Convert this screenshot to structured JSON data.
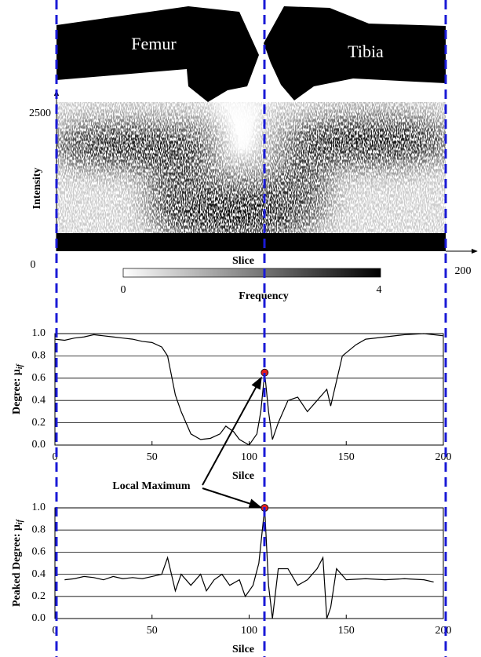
{
  "anatomy": {
    "femur": "Femur",
    "tibia": "Tibia"
  },
  "intensity_map": {
    "ylabel": "Intensity",
    "xlabel": "Slice",
    "ytop_label": "2500",
    "origin_label": "0",
    "xend_label": "200",
    "colorbar": {
      "label": "Frequency",
      "min_label": "0",
      "max_label": "4"
    }
  },
  "annotation": "Local Maximum",
  "chart_data": [
    {
      "type": "line",
      "xlabel": "Silce",
      "ylabel": "Degree:  μ",
      "ylabel_sub": "if",
      "xlim": [
        0,
        200
      ],
      "xticks": [
        0,
        50,
        100,
        150,
        200
      ],
      "ylim": [
        0,
        1
      ],
      "yticks": [
        {
          "value": 0,
          "label": "0.0"
        },
        0.2,
        0.4,
        0.6,
        0.8,
        {
          "value": 1,
          "label": "1.0"
        }
      ],
      "grid": true,
      "series": [
        {
          "color": "#000000",
          "x": [
            0,
            5,
            10,
            15,
            20,
            25,
            30,
            35,
            40,
            45,
            50,
            55,
            58,
            62,
            65,
            70,
            75,
            80,
            85,
            88,
            92,
            95,
            100,
            104,
            106,
            108,
            110,
            112,
            115,
            120,
            125,
            130,
            135,
            140,
            142,
            144,
            148,
            155,
            160,
            170,
            180,
            190,
            200
          ],
          "values": [
            0.95,
            0.94,
            0.96,
            0.97,
            0.99,
            0.98,
            0.97,
            0.96,
            0.95,
            0.93,
            0.92,
            0.88,
            0.8,
            0.45,
            0.3,
            0.1,
            0.05,
            0.06,
            0.1,
            0.17,
            0.12,
            0.05,
            0.0,
            0.1,
            0.3,
            0.65,
            0.3,
            0.05,
            0.2,
            0.4,
            0.43,
            0.3,
            0.4,
            0.5,
            0.35,
            0.5,
            0.8,
            0.9,
            0.95,
            0.97,
            0.99,
            1.0,
            0.98
          ]
        }
      ],
      "markers": [
        {
          "x": 108,
          "y": 0.65,
          "color": "#e02020"
        }
      ]
    },
    {
      "type": "line",
      "xlabel": "Silce",
      "ylabel": "Peaked Degree:  μ",
      "ylabel_sub": "if",
      "xlim": [
        0,
        200
      ],
      "xticks": [
        0,
        50,
        100,
        150,
        200
      ],
      "ylim": [
        0,
        1
      ],
      "yticks": [
        {
          "value": 0,
          "label": "0.0"
        },
        0.2,
        0.4,
        0.6,
        0.8,
        {
          "value": 1,
          "label": "1.0"
        }
      ],
      "grid": true,
      "series": [
        {
          "color": "#000000",
          "x": [
            5,
            10,
            15,
            20,
            25,
            30,
            35,
            40,
            45,
            50,
            55,
            58,
            62,
            65,
            70,
            75,
            78,
            82,
            86,
            90,
            95,
            98,
            102,
            105,
            108,
            110,
            112,
            115,
            120,
            125,
            130,
            135,
            138,
            140,
            142,
            145,
            150,
            160,
            170,
            180,
            190,
            195
          ],
          "values": [
            0.35,
            0.36,
            0.38,
            0.37,
            0.35,
            0.38,
            0.36,
            0.37,
            0.36,
            0.38,
            0.4,
            0.55,
            0.25,
            0.4,
            0.3,
            0.4,
            0.25,
            0.35,
            0.4,
            0.3,
            0.35,
            0.2,
            0.3,
            0.5,
            1.0,
            0.3,
            0.0,
            0.45,
            0.45,
            0.3,
            0.35,
            0.45,
            0.55,
            0.0,
            0.1,
            0.45,
            0.35,
            0.36,
            0.35,
            0.36,
            0.35,
            0.33
          ]
        }
      ],
      "markers": [
        {
          "x": 108,
          "y": 1.0,
          "color": "#e02020"
        }
      ]
    }
  ]
}
